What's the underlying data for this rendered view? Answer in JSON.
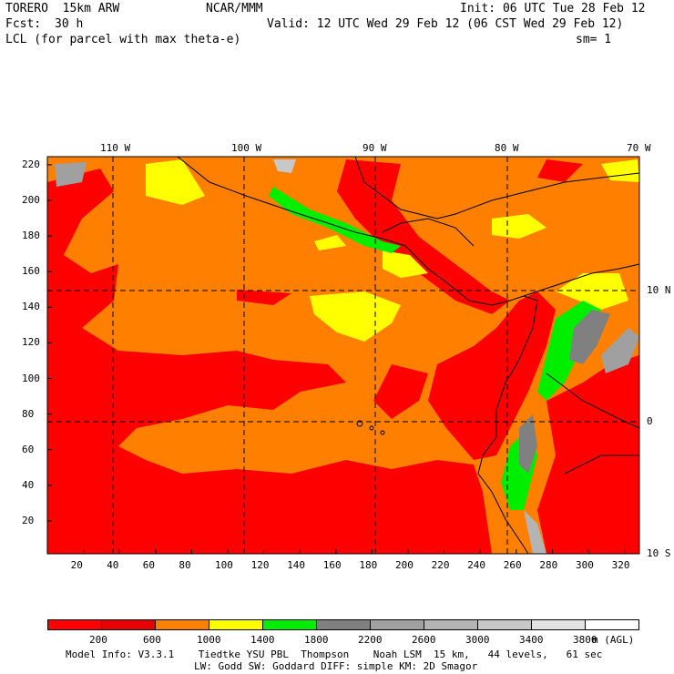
{
  "header": {
    "model": "TORERO  15km ARW",
    "org": "NCAR/MMM",
    "init": "Init: 06 UTC Tue 28 Feb 12",
    "fcst_label": "Fcst:",
    "fcst_value": "30 h",
    "valid": "Valid: 12 UTC Wed 29 Feb 12 (06 CST Wed 29 Feb 12)",
    "field": "LCL (for parcel with max theta-e)",
    "smoothing": "sm= 1"
  },
  "map": {
    "lon_labels": [
      "110 W",
      "100 W",
      "90 W",
      "80 W",
      "70 W"
    ],
    "lat_labels": [
      "10 N",
      "0",
      "10 S"
    ],
    "x_ticks": [
      "20",
      "40",
      "60",
      "80",
      "100",
      "120",
      "140",
      "160",
      "180",
      "200",
      "220",
      "240",
      "260",
      "280",
      "300",
      "320"
    ],
    "y_ticks": [
      "20",
      "40",
      "60",
      "80",
      "100",
      "120",
      "140",
      "160",
      "180",
      "200",
      "220"
    ]
  },
  "colorbar": {
    "colors": [
      "#ff0000",
      "#e80000",
      "#ff8000",
      "#ffff00",
      "#00ee00",
      "#808080",
      "#a0a0a0",
      "#b4b4b4",
      "#c8c8c8",
      "#e2e2e2",
      "#ffffff"
    ],
    "labels": [
      "200",
      "600",
      "1000",
      "1400",
      "1800",
      "2200",
      "2600",
      "3000",
      "3400",
      "3800"
    ],
    "units": "m (AGL)"
  },
  "footer": {
    "line1": "Model Info: V3.3.1    Tiedtke YSU PBL  Thompson    Noah LSM  15 km,   44 levels,   61 sec",
    "line2": "LW: Godd SW: Goddard DIFF: simple KM: 2D Smagor"
  }
}
